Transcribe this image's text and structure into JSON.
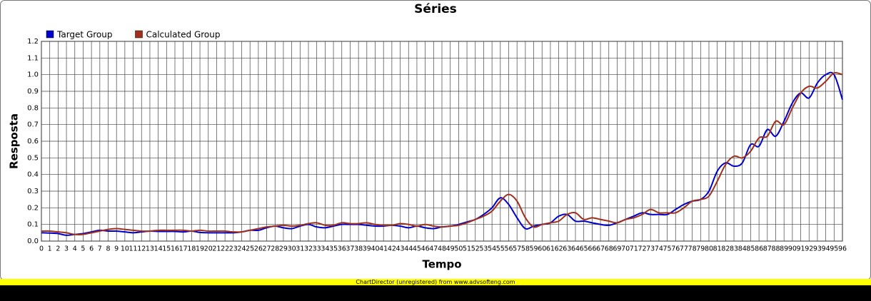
{
  "chart_data": {
    "type": "line",
    "title": "Séries",
    "x_label": "Tempo",
    "y_label": "Resposta",
    "categories": [
      "0",
      "1",
      "2",
      "3",
      "4",
      "5",
      "6",
      "7",
      "8",
      "9",
      "10",
      "11",
      "12",
      "13",
      "14",
      "15",
      "16",
      "17",
      "18",
      "19",
      "20",
      "21",
      "22",
      "23",
      "24",
      "25",
      "26",
      "27",
      "28",
      "29",
      "30",
      "31",
      "32",
      "33",
      "34",
      "35",
      "36",
      "37",
      "38",
      "39",
      "40",
      "41",
      "42",
      "43",
      "44",
      "45",
      "46",
      "47",
      "48",
      "49",
      "50",
      "51",
      "52",
      "53",
      "54",
      "55",
      "56",
      "57",
      "58",
      "59",
      "60",
      "61",
      "62",
      "63",
      "64",
      "65",
      "66",
      "67",
      "68",
      "69",
      "70",
      "71",
      "72",
      "73",
      "74",
      "75",
      "76",
      "77",
      "78",
      "79",
      "80",
      "81",
      "82",
      "83",
      "84",
      "85",
      "86",
      "87",
      "88",
      "89",
      "90",
      "91",
      "92",
      "93",
      "94",
      "95",
      "96"
    ],
    "series": [
      {
        "name": "Target Group",
        "color": "#0000cc",
        "values": [
          0.05,
          0.048,
          0.045,
          0.035,
          0.04,
          0.045,
          0.055,
          0.065,
          0.06,
          0.06,
          0.055,
          0.05,
          0.055,
          0.06,
          0.058,
          0.058,
          0.058,
          0.055,
          0.06,
          0.052,
          0.05,
          0.05,
          0.05,
          0.05,
          0.055,
          0.065,
          0.065,
          0.08,
          0.09,
          0.08,
          0.075,
          0.09,
          0.1,
          0.085,
          0.08,
          0.09,
          0.1,
          0.1,
          0.1,
          0.095,
          0.09,
          0.09,
          0.095,
          0.09,
          0.08,
          0.09,
          0.08,
          0.075,
          0.085,
          0.09,
          0.1,
          0.115,
          0.13,
          0.16,
          0.2,
          0.26,
          0.22,
          0.14,
          0.075,
          0.09,
          0.1,
          0.11,
          0.15,
          0.16,
          0.12,
          0.12,
          0.11,
          0.1,
          0.095,
          0.11,
          0.13,
          0.15,
          0.17,
          0.16,
          0.16,
          0.16,
          0.19,
          0.22,
          0.24,
          0.25,
          0.3,
          0.42,
          0.47,
          0.45,
          0.47,
          0.58,
          0.57,
          0.67,
          0.63,
          0.72,
          0.83,
          0.89,
          0.86,
          0.95,
          1.0,
          1.0,
          0.85
        ]
      },
      {
        "name": "Calculated Group",
        "color": "#a0301c",
        "values": [
          0.06,
          0.06,
          0.055,
          0.05,
          0.04,
          0.04,
          0.05,
          0.06,
          0.07,
          0.075,
          0.07,
          0.065,
          0.06,
          0.06,
          0.065,
          0.065,
          0.065,
          0.065,
          0.06,
          0.065,
          0.06,
          0.06,
          0.06,
          0.055,
          0.055,
          0.065,
          0.075,
          0.085,
          0.09,
          0.095,
          0.09,
          0.095,
          0.105,
          0.11,
          0.095,
          0.095,
          0.11,
          0.105,
          0.105,
          0.11,
          0.1,
          0.095,
          0.095,
          0.105,
          0.1,
          0.09,
          0.1,
          0.09,
          0.085,
          0.09,
          0.095,
          0.11,
          0.13,
          0.15,
          0.18,
          0.24,
          0.28,
          0.24,
          0.14,
          0.085,
          0.1,
          0.11,
          0.12,
          0.16,
          0.17,
          0.13,
          0.14,
          0.13,
          0.12,
          0.11,
          0.13,
          0.14,
          0.16,
          0.19,
          0.17,
          0.17,
          0.17,
          0.2,
          0.24,
          0.25,
          0.27,
          0.36,
          0.46,
          0.51,
          0.5,
          0.54,
          0.62,
          0.63,
          0.72,
          0.7,
          0.8,
          0.89,
          0.93,
          0.92,
          0.96,
          1.01,
          1.0
        ]
      }
    ],
    "ylim": [
      0,
      1.2
    ],
    "yticks": [
      {
        "value": 0,
        "label": "0.0"
      },
      0.1,
      0.2,
      0.3,
      0.4,
      0.5,
      0.6,
      0.7,
      0.8,
      0.9,
      {
        "value": 1,
        "label": "1.0"
      },
      1.1,
      1.2
    ],
    "grid": true,
    "legend": "top-left",
    "smooth": true,
    "footer": "ChartDirector (unregistered) from www.advsofteng.com"
  }
}
